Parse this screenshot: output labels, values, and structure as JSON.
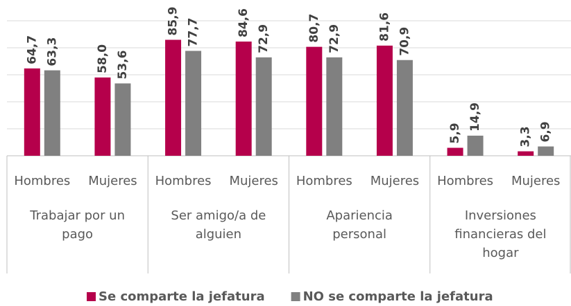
{
  "chart_data": {
    "type": "bar",
    "categories": [
      "Hombres",
      "Mujeres",
      "Hombres",
      "Mujeres",
      "Hombres",
      "Mujeres",
      "Hombres",
      "Mujeres"
    ],
    "groups": [
      "Trabajar por un pago",
      "Ser amigo/a de alguien",
      "Apariencia personal",
      "Inversiones financieras del hogar"
    ],
    "series": [
      {
        "name": "Se comparte la jefatura",
        "color": "#b5004b",
        "values": [
          64.7,
          58.0,
          85.9,
          84.6,
          80.7,
          81.6,
          5.9,
          3.3
        ],
        "value_labels": [
          "64,7",
          "58,0",
          "85,9",
          "84,6",
          "80,7",
          "81,6",
          "5,9",
          "3,3"
        ]
      },
      {
        "name": "NO se comparte la jefatura",
        "color": "#808080",
        "values": [
          63.3,
          53.6,
          77.7,
          72.9,
          72.9,
          70.9,
          14.9,
          6.9
        ],
        "value_labels": [
          "63,3",
          "53,6",
          "77,7",
          "72,9",
          "72,9",
          "70,9",
          "14,9",
          "6,9"
        ]
      }
    ],
    "ylim": [
      0,
      100
    ],
    "yticks": [
      0,
      20,
      40,
      60,
      80,
      100
    ],
    "grid": true
  }
}
